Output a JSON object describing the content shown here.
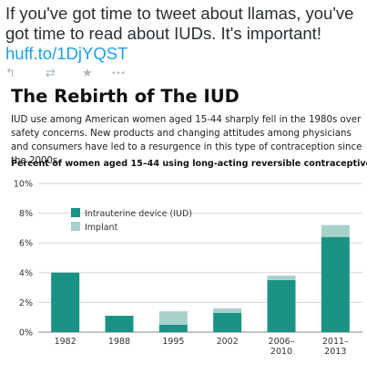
{
  "tweet": {
    "text": "If you've got time to tweet about llamas, you've got time to read about IUDs. It's important!",
    "link": "huff.to/1DjYQST"
  },
  "actions": [
    {
      "name": "reply-icon",
      "glyph": "↰"
    },
    {
      "name": "retweet-icon",
      "glyph": "⇄"
    },
    {
      "name": "favorite-icon",
      "glyph": "★"
    },
    {
      "name": "more-icon",
      "glyph": "•••"
    }
  ],
  "article": {
    "headline": "The Rebirth of The IUD",
    "intro": "IUD use among American women aged 15-44 sharply fell in the 1980s over safety concerns. New products and changing attitudes among physicians and consumers have led to a resurgence in this type of contraception since the 2000s."
  },
  "chart_data": {
    "type": "bar",
    "stacked": true,
    "title": "Percent of women aged 15–44 using long-acting reversible contraceptive",
    "categories": [
      [
        "1982"
      ],
      [
        "1988"
      ],
      [
        "1995"
      ],
      [
        "2002"
      ],
      [
        "2006–",
        "2010"
      ],
      [
        "2011–",
        "2013"
      ]
    ],
    "series": [
      {
        "name": "Intrauterine device (IUD)",
        "color": "#1a9385",
        "values": [
          4.0,
          1.1,
          0.5,
          1.3,
          3.5,
          6.4
        ]
      },
      {
        "name": "Implant",
        "color": "#a8d1cb",
        "values": [
          0.0,
          0.0,
          0.9,
          0.3,
          0.3,
          0.8
        ]
      }
    ],
    "ylim": [
      0,
      10
    ],
    "yticks": [
      0,
      2,
      4,
      6,
      8,
      10
    ],
    "ytick_format": "%",
    "grid": true,
    "legend_position": "top-left"
  }
}
